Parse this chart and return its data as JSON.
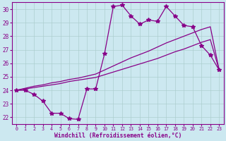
{
  "xlabel": "Windchill (Refroidissement éolien,°C)",
  "background_color": "#cce8f0",
  "grid_color": "#aacccc",
  "line_color": "#880088",
  "hours": [
    0,
    1,
    2,
    3,
    4,
    5,
    6,
    7,
    8,
    9,
    10,
    11,
    12,
    13,
    14,
    15,
    16,
    17,
    18,
    19,
    20,
    21,
    22,
    23
  ],
  "windchill": [
    24.0,
    24.0,
    23.7,
    23.2,
    22.3,
    22.3,
    21.9,
    21.85,
    24.1,
    24.1,
    26.7,
    30.2,
    30.3,
    29.5,
    28.9,
    29.2,
    29.1,
    30.2,
    29.5,
    28.8,
    28.7,
    27.3,
    26.6,
    25.5
  ],
  "smooth1": [
    24.0,
    24.15,
    24.3,
    24.4,
    24.55,
    24.65,
    24.8,
    24.9,
    25.05,
    25.2,
    25.5,
    25.8,
    26.1,
    26.4,
    26.65,
    26.9,
    27.2,
    27.5,
    27.75,
    28.0,
    28.25,
    28.5,
    28.7,
    25.5
  ],
  "smooth2": [
    24.0,
    24.1,
    24.2,
    24.3,
    24.4,
    24.5,
    24.65,
    24.75,
    24.85,
    24.95,
    25.15,
    25.35,
    25.55,
    25.75,
    25.95,
    26.15,
    26.35,
    26.6,
    26.85,
    27.05,
    27.3,
    27.55,
    27.75,
    25.5
  ],
  "ylim": [
    21.5,
    30.5
  ],
  "xlim": [
    -0.5,
    23.5
  ],
  "yticks": [
    22,
    23,
    24,
    25,
    26,
    27,
    28,
    29,
    30
  ],
  "xtick_fontsize": 4.8,
  "ytick_fontsize": 5.5,
  "xlabel_fontsize": 5.8,
  "linewidth": 0.9,
  "markersize": 2.2
}
